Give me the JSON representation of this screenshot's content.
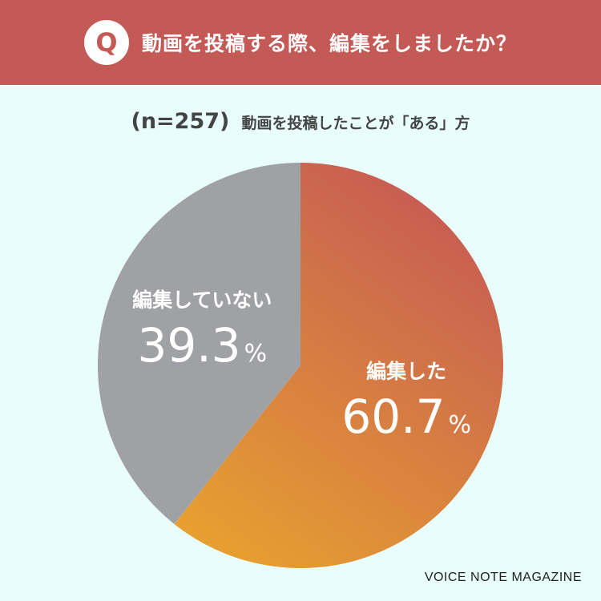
{
  "header": {
    "badge": "Q",
    "question": "動画を投稿する際、編集をしましたか？"
  },
  "subtitle": {
    "sample": "(n=257)",
    "description": "動画を投稿したことが「ある」方"
  },
  "chart_data": {
    "type": "pie",
    "categories": [
      "編集した",
      "編集していない"
    ],
    "values": [
      60.7,
      39.3
    ],
    "value_labels": [
      "60.7",
      "39.3"
    ],
    "unit": "%",
    "colors": [
      "#e39a33",
      "#a0a1a5"
    ]
  },
  "brand": "VOICE NOTE MAGAZINE"
}
